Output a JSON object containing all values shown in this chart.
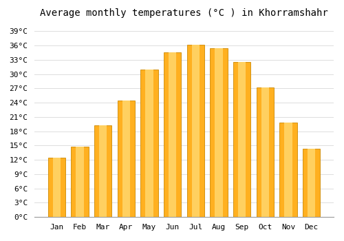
{
  "title": "Average monthly temperatures (°C ) in Khorramshahr",
  "months": [
    "Jan",
    "Feb",
    "Mar",
    "Apr",
    "May",
    "Jun",
    "Jul",
    "Aug",
    "Sep",
    "Oct",
    "Nov",
    "Dec"
  ],
  "values": [
    12.5,
    14.8,
    19.2,
    24.5,
    31.0,
    34.5,
    36.2,
    35.5,
    32.5,
    27.2,
    19.8,
    14.3
  ],
  "bar_color_main": "#FFB020",
  "bar_color_edge": "#CC8800",
  "bar_color_highlight": "#FFD060",
  "background_color": "#FFFFFF",
  "grid_color": "#DDDDDD",
  "y_ticks": [
    0,
    3,
    6,
    9,
    12,
    15,
    18,
    21,
    24,
    27,
    30,
    33,
    36,
    39
  ],
  "ylim": [
    0,
    41
  ],
  "title_fontsize": 10,
  "tick_fontsize": 8,
  "font_family": "monospace",
  "bar_width": 0.75
}
